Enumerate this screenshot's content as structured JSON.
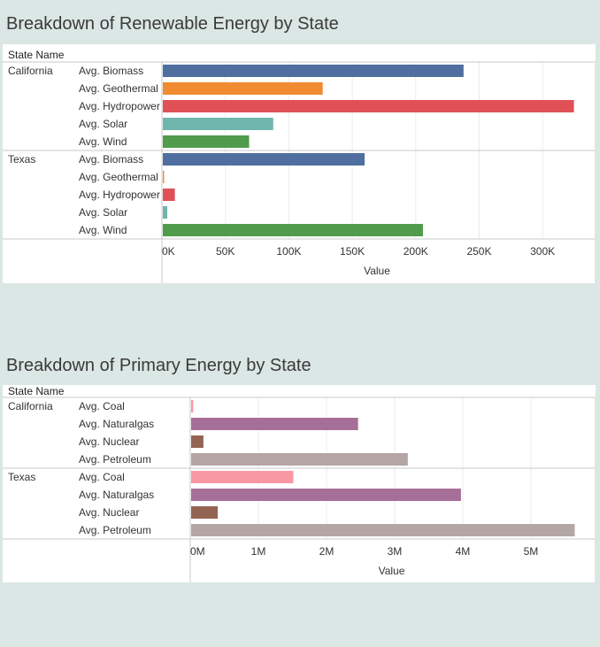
{
  "colors": {
    "background": "#dbe7e4",
    "panel": "#ffffff",
    "rule": "#c8c8c8",
    "grid": "#ececec"
  },
  "row_header": "State Name",
  "chart_data": [
    {
      "type": "bar",
      "orientation": "horizontal",
      "title": "Breakdown of Renewable Energy by State",
      "xlabel": "Value",
      "xlim": [
        0,
        325000
      ],
      "ticks": [
        {
          "v": 0,
          "label": "0K"
        },
        {
          "v": 50000,
          "label": "50K"
        },
        {
          "v": 100000,
          "label": "100K"
        },
        {
          "v": 150000,
          "label": "150K"
        },
        {
          "v": 200000,
          "label": "200K"
        },
        {
          "v": 250000,
          "label": "250K"
        },
        {
          "v": 300000,
          "label": "300K"
        }
      ],
      "categories": [
        "Avg. Biomass",
        "Avg. Geothermal",
        "Avg. Hydropower",
        "Avg. Solar",
        "Avg. Wind"
      ],
      "category_colors": [
        "#4e6f9f",
        "#f08b32",
        "#df5156",
        "#6fb6ad",
        "#509b4c"
      ],
      "groups": [
        {
          "name": "California",
          "values": [
            237000,
            126000,
            324000,
            87000,
            68000
          ]
        },
        {
          "name": "Texas",
          "values": [
            159000,
            1000,
            9500,
            3500,
            205000
          ]
        }
      ]
    },
    {
      "type": "bar",
      "orientation": "horizontal",
      "title": "Breakdown of Primary Energy by State",
      "xlabel": "Value",
      "xlim": [
        0,
        5650000
      ],
      "ticks": [
        {
          "v": 0,
          "label": "0M"
        },
        {
          "v": 1000000,
          "label": "1M"
        },
        {
          "v": 2000000,
          "label": "2M"
        },
        {
          "v": 3000000,
          "label": "3M"
        },
        {
          "v": 4000000,
          "label": "4M"
        },
        {
          "v": 5000000,
          "label": "5M"
        }
      ],
      "categories": [
        "Avg. Coal",
        "Avg. Naturalgas",
        "Avg. Nuclear",
        "Avg. Petroleum"
      ],
      "category_colors": [
        "#f898a5",
        "#a66f98",
        "#946453",
        "#b3a6a4"
      ],
      "groups": [
        {
          "name": "California",
          "values": [
            30000,
            2450000,
            180000,
            3180000
          ]
        },
        {
          "name": "Texas",
          "values": [
            1500000,
            3960000,
            390000,
            5630000
          ]
        }
      ]
    }
  ]
}
